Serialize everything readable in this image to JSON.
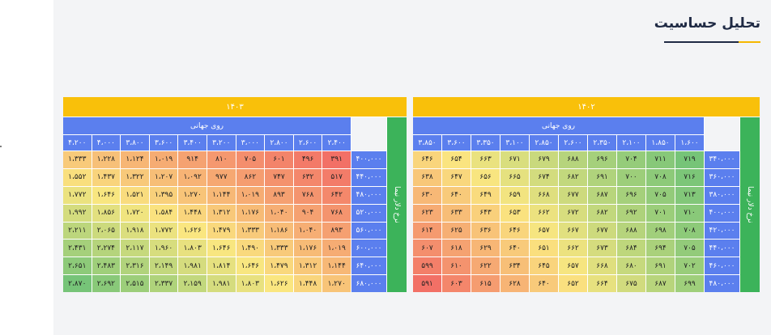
{
  "page_title": "تحلیل حساسیت",
  "colors": {
    "accent": "#f9c00a",
    "header": "#5b7fee",
    "label": "#3cb35a",
    "title": "#1f2a44"
  },
  "tables": [
    {
      "year": "۱۴۰۳",
      "col_title": "روی جهانی",
      "row_title": "نرخ دلار نیما",
      "cols": [
        "۲،۴۰۰",
        "۲،۶۰۰",
        "۲،۸۰۰",
        "۳،۰۰۰",
        "۳،۲۰۰",
        "۳،۴۰۰",
        "۳،۶۰۰",
        "۳،۸۰۰",
        "۴،۰۰۰",
        "۴،۲۰۰"
      ],
      "rows": [
        "۴۰۰،۰۰۰",
        "۴۴۰،۰۰۰",
        "۴۸۰،۰۰۰",
        "۵۲۰،۰۰۰",
        "۵۶۰،۰۰۰",
        "۶۰۰،۰۰۰",
        "۶۴۰،۰۰۰",
        "۶۸۰،۰۰۰"
      ],
      "raw": [
        [
          391,
          496,
          601,
          705,
          810,
          914,
          1019,
          1124,
          1228,
          1333
        ],
        [
          517,
          632,
          747,
          862,
          977,
          1092,
          1207,
          1322,
          1437,
          1552
        ],
        [
          642,
          768,
          893,
          1019,
          1144,
          1270,
          1395,
          1521,
          1646,
          1772
        ],
        [
          768,
          904,
          1040,
          1176,
          1312,
          1448,
          1584,
          1720,
          1856,
          1992
        ],
        [
          893,
          1040,
          1186,
          1333,
          1479,
          1626,
          1772,
          1918,
          2065,
          2211
        ],
        [
          1019,
          1176,
          1333,
          1490,
          1646,
          1803,
          1960,
          2117,
          2274,
          2431
        ],
        [
          1144,
          1312,
          1479,
          1646,
          1814,
          1981,
          2149,
          2316,
          2483,
          2651
        ],
        [
          1270,
          1448,
          1626,
          1803,
          1981,
          2159,
          2337,
          2515,
          2692,
          2870
        ]
      ],
      "cells": [
        [
          "۳۹۱",
          "۴۹۶",
          "۶۰۱",
          "۷۰۵",
          "۸۱۰",
          "۹۱۴",
          "۱،۰۱۹",
          "۱،۱۲۴",
          "۱،۲۲۸",
          "۱،۳۳۳"
        ],
        [
          "۵۱۷",
          "۶۳۲",
          "۷۴۷",
          "۸۶۲",
          "۹۷۷",
          "۱،۰۹۲",
          "۱،۲۰۷",
          "۱،۳۲۲",
          "۱،۴۳۷",
          "۱،۵۵۲"
        ],
        [
          "۶۴۲",
          "۷۶۸",
          "۸۹۳",
          "۱،۰۱۹",
          "۱،۱۴۴",
          "۱،۲۷۰",
          "۱،۳۹۵",
          "۱،۵۲۱",
          "۱،۶۴۶",
          "۱،۷۷۲"
        ],
        [
          "۷۶۸",
          "۹۰۴",
          "۱،۰۴۰",
          "۱،۱۷۶",
          "۱،۳۱۲",
          "۱،۴۴۸",
          "۱،۵۸۴",
          "۱،۷۲۰",
          "۱،۸۵۶",
          "۱،۹۹۲"
        ],
        [
          "۸۹۳",
          "۱،۰۴۰",
          "۱،۱۸۶",
          "۱،۳۳۳",
          "۱،۴۷۹",
          "۱،۶۲۶",
          "۱،۷۷۲",
          "۱،۹۱۸",
          "۲،۰۶۵",
          "۲،۲۱۱"
        ],
        [
          "۱،۰۱۹",
          "۱،۱۷۶",
          "۱،۳۳۳",
          "۱،۴۹۰",
          "۱،۶۴۶",
          "۱،۸۰۳",
          "۱،۹۶۰",
          "۲،۱۱۷",
          "۲،۲۷۴",
          "۲،۴۳۱"
        ],
        [
          "۱،۱۴۴",
          "۱،۳۱۲",
          "۱،۴۷۹",
          "۱،۶۴۶",
          "۱،۸۱۴",
          "۱،۹۸۱",
          "۲،۱۴۹",
          "۲،۳۱۶",
          "۲،۴۸۳",
          "۲،۶۵۱"
        ],
        [
          "۱،۲۷۰",
          "۱،۴۴۸",
          "۱،۶۲۶",
          "۱،۸۰۳",
          "۱،۹۸۱",
          "۲،۱۵۹",
          "۲،۳۳۷",
          "۲،۵۱۵",
          "۲،۶۹۲",
          "۲،۸۷۰"
        ]
      ]
    },
    {
      "year": "۱۴۰۲",
      "col_title": "روی جهانی",
      "row_title": "نرخ دلار نیما",
      "cols": [
        "۱،۶۰۰",
        "۱،۸۵۰",
        "۲،۱۰۰",
        "۲،۳۵۰",
        "۲،۶۰۰",
        "۲،۸۵۰",
        "۳،۱۰۰",
        "۳،۳۵۰",
        "۳،۶۰۰",
        "۳،۸۵۰"
      ],
      "rows": [
        "۳۴۰،۰۰۰",
        "۳۶۰،۰۰۰",
        "۳۸۰،۰۰۰",
        "۴۰۰،۰۰۰",
        "۴۲۰،۰۰۰",
        "۴۴۰،۰۰۰",
        "۴۶۰،۰۰۰",
        "۴۸۰،۰۰۰"
      ],
      "raw": [
        [
          719,
          711,
          704,
          696,
          688,
          679,
          671,
          663,
          654,
          646
        ],
        [
          716,
          708,
          700,
          691,
          682,
          674,
          665,
          656,
          647,
          638
        ],
        [
          713,
          705,
          696,
          687,
          677,
          668,
          659,
          649,
          640,
          630
        ],
        [
          710,
          701,
          692,
          682,
          672,
          662,
          653,
          643,
          633,
          623
        ],
        [
          708,
          698,
          688,
          677,
          667,
          657,
          646,
          636,
          625,
          614
        ],
        [
          705,
          694,
          684,
          673,
          662,
          651,
          640,
          629,
          618,
          607
        ],
        [
          702,
          691,
          680,
          668,
          657,
          645,
          634,
          622,
          610,
          599
        ],
        [
          699,
          687,
          675,
          664,
          652,
          640,
          628,
          615,
          603,
          591
        ]
      ],
      "cells": [
        [
          "۷۱۹",
          "۷۱۱",
          "۷۰۴",
          "۶۹۶",
          "۶۸۸",
          "۶۷۹",
          "۶۷۱",
          "۶۶۳",
          "۶۵۴",
          "۶۴۶"
        ],
        [
          "۷۱۶",
          "۷۰۸",
          "۷۰۰",
          "۶۹۱",
          "۶۸۲",
          "۶۷۴",
          "۶۶۵",
          "۶۵۶",
          "۶۴۷",
          "۶۳۸"
        ],
        [
          "۷۱۳",
          "۷۰۵",
          "۶۹۶",
          "۶۸۷",
          "۶۷۷",
          "۶۶۸",
          "۶۵۹",
          "۶۴۹",
          "۶۴۰",
          "۶۳۰"
        ],
        [
          "۷۱۰",
          "۷۰۱",
          "۶۹۲",
          "۶۸۲",
          "۶۷۲",
          "۶۶۲",
          "۶۵۳",
          "۶۴۳",
          "۶۳۳",
          "۶۲۳"
        ],
        [
          "۷۰۸",
          "۶۹۸",
          "۶۸۸",
          "۶۷۷",
          "۶۶۷",
          "۶۵۷",
          "۶۴۶",
          "۶۳۶",
          "۶۲۵",
          "۶۱۴"
        ],
        [
          "۷۰۵",
          "۶۹۴",
          "۶۸۴",
          "۶۷۳",
          "۶۶۲",
          "۶۵۱",
          "۶۴۰",
          "۶۲۹",
          "۶۱۸",
          "۶۰۷"
        ],
        [
          "۷۰۲",
          "۶۹۱",
          "۶۸۰",
          "۶۶۸",
          "۶۵۷",
          "۶۴۵",
          "۶۳۴",
          "۶۲۲",
          "۶۱۰",
          "۵۹۹"
        ],
        [
          "۶۹۹",
          "۶۸۷",
          "۶۷۵",
          "۶۶۴",
          "۶۵۲",
          "۶۴۰",
          "۶۲۸",
          "۶۱۵",
          "۶۰۳",
          "۵۹۱"
        ]
      ]
    }
  ]
}
